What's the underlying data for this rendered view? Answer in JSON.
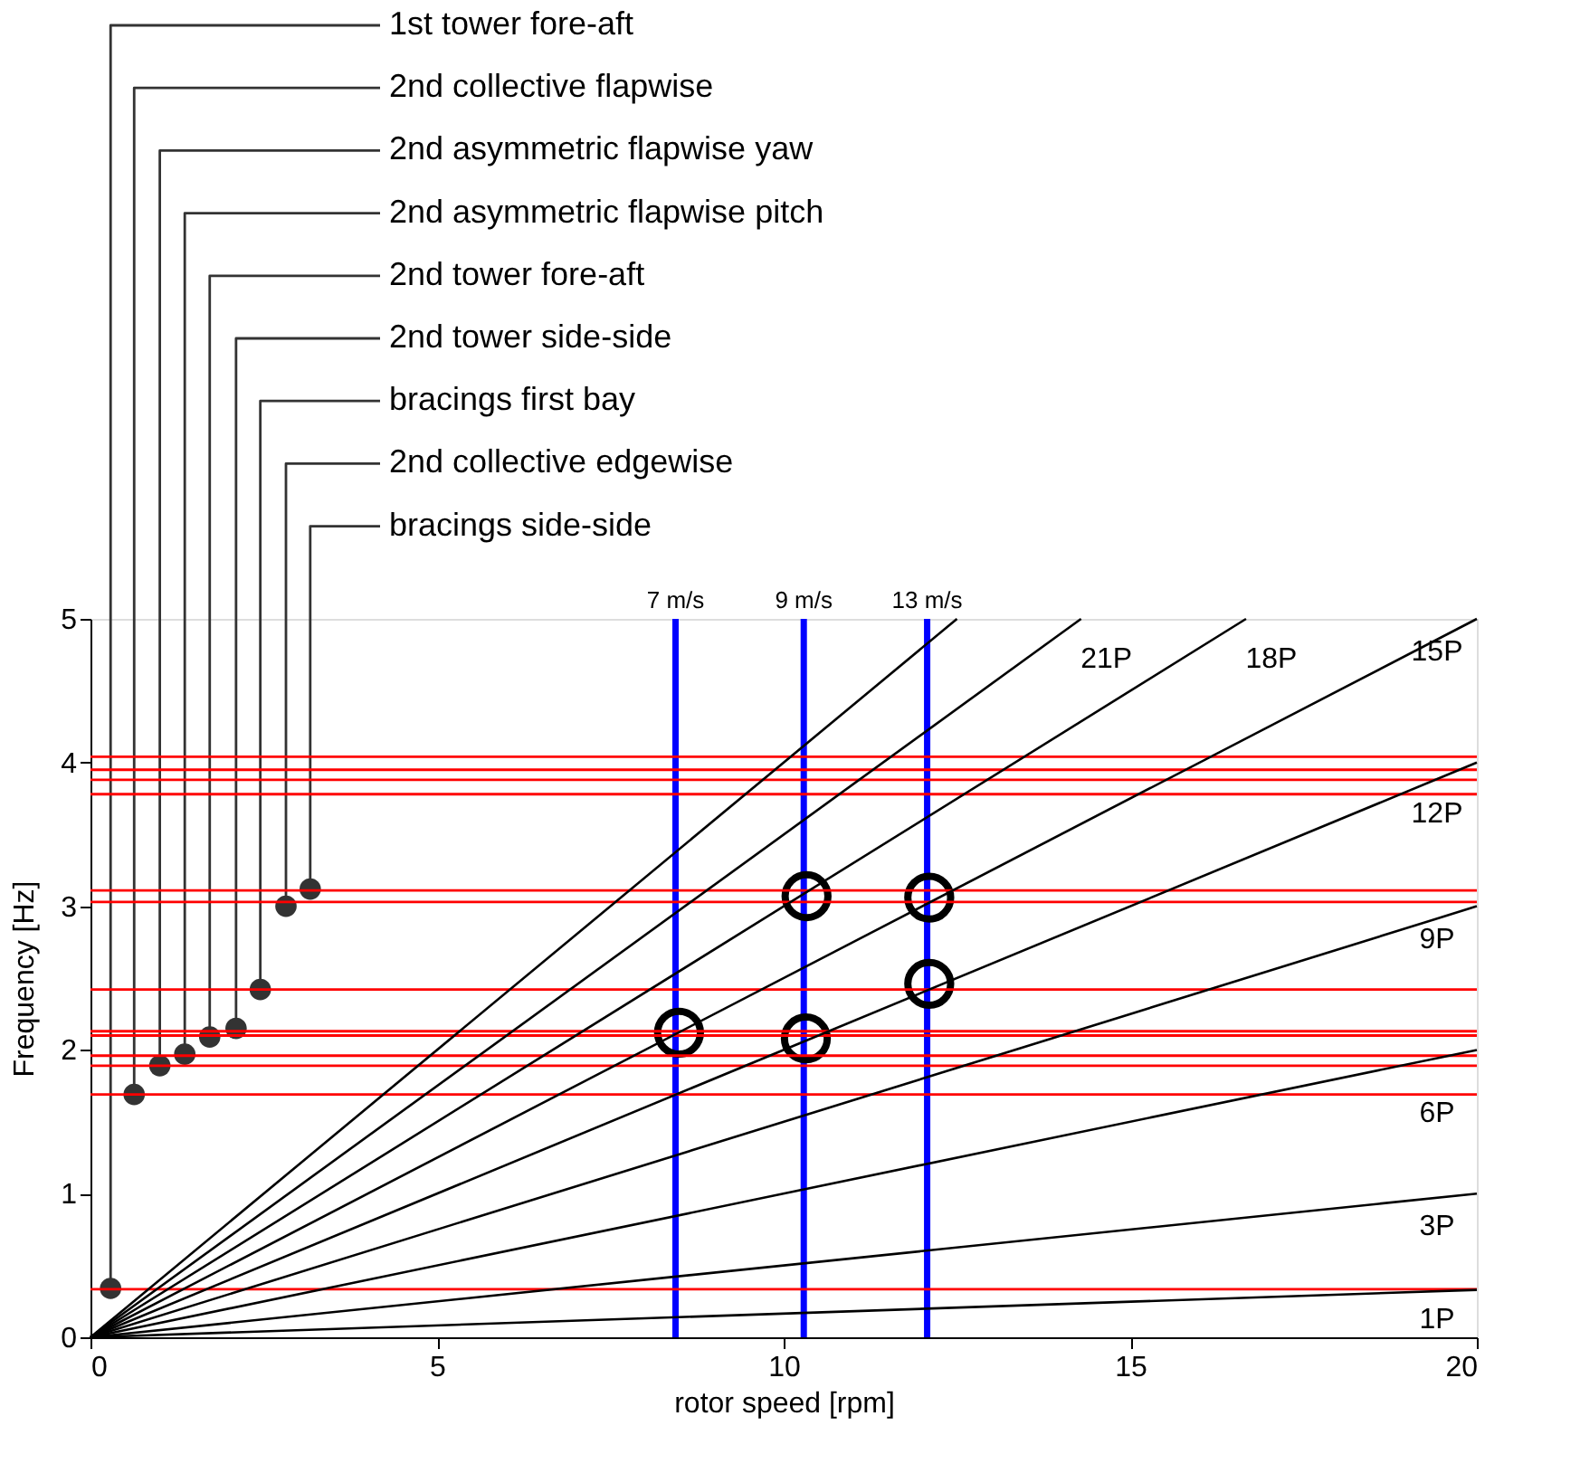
{
  "chart_data": {
    "type": "line",
    "xlabel": "rotor speed [rpm]",
    "ylabel": "Frequency [Hz]",
    "xlim": [
      0,
      20
    ],
    "ylim": [
      0,
      5
    ],
    "xticks": [
      0,
      5,
      10,
      15,
      20
    ],
    "yticks": [
      0,
      1,
      2,
      3,
      4,
      5
    ],
    "grid": false,
    "series": [
      {
        "name": "1P",
        "color": "#000000",
        "x": [
          0,
          20
        ],
        "values": [
          0,
          0.33
        ]
      },
      {
        "name": "3P",
        "color": "#000000",
        "x": [
          0,
          20
        ],
        "values": [
          0,
          1
        ]
      },
      {
        "name": "6P",
        "color": "#000000",
        "x": [
          0,
          20
        ],
        "values": [
          0,
          2
        ]
      },
      {
        "name": "9P",
        "color": "#000000",
        "x": [
          0,
          20
        ],
        "values": [
          0,
          3
        ]
      },
      {
        "name": "12P",
        "color": "#000000",
        "x": [
          0,
          20
        ],
        "values": [
          0,
          4
        ]
      },
      {
        "name": "15P",
        "color": "#000000",
        "x": [
          0,
          20
        ],
        "values": [
          0,
          5
        ]
      },
      {
        "name": "18P",
        "color": "#000000",
        "x": [
          0,
          16.67
        ],
        "values": [
          0,
          5
        ]
      },
      {
        "name": "21P",
        "color": "#000000",
        "x": [
          0,
          14.29
        ],
        "values": [
          0,
          5
        ]
      },
      {
        "color": "#000000",
        "x": [
          0,
          12.5
        ],
        "values": [
          0,
          5
        ]
      },
      {
        "type": "scatter",
        "color": "#333333",
        "x": [
          0.29,
          0.63,
          1.0,
          1.36,
          1.72,
          2.1,
          2.45,
          2.82,
          3.17
        ],
        "values": [
          0.34,
          1.69,
          1.89,
          1.97,
          2.09,
          2.15,
          2.42,
          3.0,
          3.12
        ]
      },
      {
        "type": "bubble",
        "color": "#000000",
        "x": [
          8.49,
          10.33,
          10.32,
          12.1,
          12.1
        ],
        "values": [
          2.12,
          3.07,
          2.08,
          3.06,
          2.46
        ],
        "sizes": [
          1,
          1,
          1,
          1,
          1
        ]
      }
    ],
    "ref_lines": [
      {
        "axis": "y",
        "value": 0.335,
        "color": "#ff0000"
      },
      {
        "axis": "y",
        "value": 1.69,
        "color": "#ff0000"
      },
      {
        "axis": "y",
        "value": 1.89,
        "color": "#ff0000"
      },
      {
        "axis": "y",
        "value": 1.96,
        "color": "#ff0000"
      },
      {
        "axis": "y",
        "value": 2.1,
        "color": "#ff0000"
      },
      {
        "axis": "y",
        "value": 2.13,
        "color": "#ff0000"
      },
      {
        "axis": "y",
        "value": 2.42,
        "color": "#ff0000"
      },
      {
        "axis": "y",
        "value": 3.03,
        "color": "#ff0000"
      },
      {
        "axis": "y",
        "value": 3.11,
        "color": "#ff0000"
      },
      {
        "axis": "y",
        "value": 3.78,
        "color": "#ff0000"
      },
      {
        "axis": "y",
        "value": 3.88,
        "color": "#ff0000"
      },
      {
        "axis": "y",
        "value": 3.95,
        "color": "#ff0000"
      },
      {
        "axis": "y",
        "value": 4.04,
        "color": "#ff0000"
      },
      {
        "axis": "x",
        "value": 8.44,
        "label": "7 m/s",
        "color": "#0000ff"
      },
      {
        "axis": "x",
        "value": 10.29,
        "label": "9 m/s",
        "color": "#0000ff"
      },
      {
        "axis": "x",
        "value": 12.07,
        "label": "13 m/s",
        "color": "#0000ff"
      }
    ],
    "annotations": [
      {
        "text": "1st tower fore-aft",
        "x": 0.29,
        "y": 0.34
      },
      {
        "text": "2nd collective flapwise",
        "x": 0.63,
        "y": 1.69
      },
      {
        "text": "2nd asymmetric flapwise yaw",
        "x": 1.0,
        "y": 1.89
      },
      {
        "text": "2nd asymmetric flapwise pitch",
        "x": 1.36,
        "y": 1.97
      },
      {
        "text": "2nd tower fore-aft",
        "x": 1.72,
        "y": 2.09
      },
      {
        "text": "2nd tower side-side",
        "x": 2.1,
        "y": 2.15
      },
      {
        "text": "bracings first bay",
        "x": 2.45,
        "y": 2.42
      },
      {
        "text": "2nd collective edgewise",
        "x": 2.82,
        "y": 3.0
      },
      {
        "text": "bracings side-side",
        "x": 3.17,
        "y": 3.12
      }
    ]
  }
}
